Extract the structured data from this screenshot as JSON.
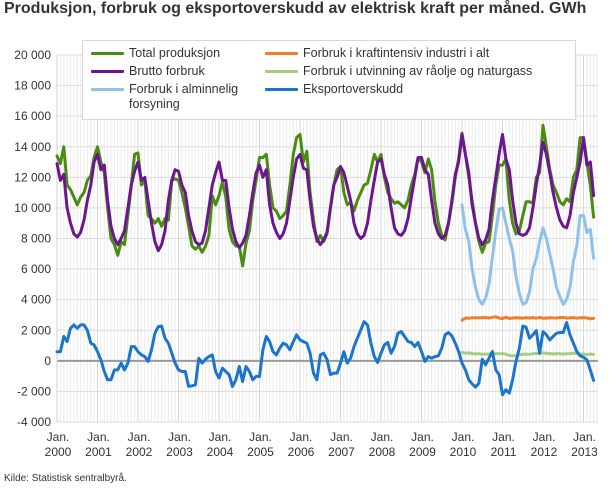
{
  "chart_data": {
    "type": "line",
    "title": "Produksjon, forbruk og eksportoverskudd av elektrisk kraft per måned. GWh",
    "xlabel": "",
    "ylabel": "",
    "ylim": [
      -4000,
      20000
    ],
    "yticks": [
      -4000,
      -2000,
      0,
      2000,
      4000,
      6000,
      8000,
      10000,
      12000,
      14000,
      16000,
      18000,
      20000
    ],
    "ytick_labels": [
      "-4 000",
      "-2 000",
      "0",
      "2 000",
      "4 000",
      "6 000",
      "8 000",
      "10 000",
      "12 000",
      "14 000",
      "16 000",
      "18 000",
      "20 000"
    ],
    "xtick_labels": [
      [
        "Jan.",
        "2000"
      ],
      [
        "Jan.",
        "2001"
      ],
      [
        "Jan.",
        "2002"
      ],
      [
        "Jan.",
        "2003"
      ],
      [
        "Jan.",
        "2004"
      ],
      [
        "Jan.",
        "2005"
      ],
      [
        "Jan.",
        "2006"
      ],
      [
        "Jan.",
        "2007"
      ],
      [
        "Jan.",
        "2008"
      ],
      [
        "Jan.",
        "2009"
      ],
      [
        "Jan.",
        "2010"
      ],
      [
        "Jan.",
        "2011"
      ],
      [
        "Jan.",
        "2012"
      ],
      [
        "Jan.",
        "2013"
      ]
    ],
    "x_frequency": "monthly",
    "x_first": "2000-01",
    "x_last": "2013-04",
    "grid": true,
    "legend": "top",
    "series": [
      {
        "name": "Total produksjon",
        "color": "#4a8c12",
        "start": "2000-01",
        "values": [
          13400,
          12900,
          14000,
          11500,
          11200,
          10700,
          10200,
          10700,
          11000,
          11800,
          12100,
          13300,
          14000,
          13000,
          12300,
          10000,
          8000,
          7600,
          6900,
          7800,
          7600,
          9500,
          11500,
          13500,
          13600,
          11500,
          11800,
          9500,
          9300,
          9000,
          9300,
          8800,
          9300,
          9200,
          11800,
          11900,
          11800,
          11000,
          10000,
          8800,
          7500,
          7300,
          7500,
          7100,
          7500,
          8200,
          10800,
          10200,
          10800,
          11700,
          10700,
          8600,
          7800,
          7500,
          7500,
          6200,
          7700,
          8500,
          10500,
          11800,
          13300,
          13300,
          13500,
          11500,
          10000,
          9800,
          9300,
          9500,
          9800,
          11500,
          13500,
          14600,
          14800,
          13000,
          13700,
          11000,
          9200,
          7800,
          8200,
          7800,
          8300,
          10000,
          11500,
          12500,
          12700,
          11000,
          10200,
          10400,
          9800,
          10500,
          11000,
          11500,
          11600,
          12500,
          13500,
          13000,
          13500,
          12000,
          11000,
          10600,
          10300,
          10400,
          10200,
          10000,
          10500,
          11500,
          12200,
          13300,
          13000,
          12300,
          13200,
          12500,
          10400,
          9000,
          8200,
          7900,
          9000,
          10300,
          12000,
          13200,
          14900,
          13500,
          12000,
          10500,
          9000,
          7800,
          7100,
          7700,
          7800,
          9500,
          11500,
          12800,
          12800,
          13200,
          10500,
          9000,
          8300,
          8500,
          9500,
          10400,
          10400,
          10300,
          12000,
          12300,
          15400,
          14000,
          12500,
          11500,
          11000,
          10400,
          10200,
          10600,
          10400,
          12000,
          12500,
          14600,
          14600,
          13000,
          11500,
          9400
        ]
      },
      {
        "name": "Brutto forbruk",
        "color": "#6b168f",
        "start": "2000-01",
        "values": [
          12900,
          11800,
          12200,
          10000,
          9000,
          8300,
          8100,
          8400,
          9200,
          10500,
          11500,
          13000,
          13500,
          12500,
          12800,
          10500,
          8800,
          8000,
          7600,
          8000,
          8500,
          10000,
          11500,
          12400,
          13000,
          11800,
          12000,
          10500,
          9000,
          7800,
          7200,
          7600,
          8500,
          10500,
          11800,
          12500,
          12400,
          11500,
          11000,
          9500,
          8500,
          7800,
          7600,
          7700,
          8500,
          10000,
          11500,
          12300,
          13000,
          11800,
          11800,
          10000,
          8600,
          7800,
          7400,
          7700,
          8200,
          9500,
          11000,
          12300,
          12800,
          12000,
          12500,
          10200,
          9000,
          8400,
          8000,
          8300,
          9000,
          10500,
          12000,
          13200,
          13500,
          12600,
          12500,
          10500,
          8800,
          8000,
          7600,
          7900,
          8400,
          10000,
          11500,
          12000,
          12700,
          12300,
          11400,
          10500,
          9000,
          8300,
          8000,
          8200,
          9000,
          10500,
          11800,
          13000,
          13200,
          12200,
          11500,
          10000,
          8700,
          8300,
          8200,
          8500,
          9300,
          10700,
          12000,
          13300,
          13300,
          12500,
          12200,
          10500,
          9000,
          8300,
          8000,
          8200,
          9000,
          10500,
          12200,
          13000,
          14800,
          13500,
          12300,
          10200,
          9000,
          8000,
          7600,
          7900,
          8600,
          10500,
          12000,
          13500,
          14800,
          13200,
          12500,
          10500,
          9000,
          8300,
          8200,
          8300,
          8700,
          10000,
          11500,
          12800,
          14300,
          13500,
          12300,
          11000,
          10000,
          9200,
          8800,
          8700,
          9500,
          11000,
          12000,
          13000,
          14600,
          12800,
          13000,
          10800
        ]
      },
      {
        "name": "Forbruk i alminnelig forsyning",
        "color": "#8fc1ea",
        "start": "2010-01",
        "values": [
          10200,
          8600,
          7800,
          6000,
          4800,
          4000,
          3700,
          4100,
          5000,
          6800,
          8500,
          9900,
          10000,
          9000,
          8000,
          7200,
          5500,
          4400,
          3700,
          3800,
          4500,
          6000,
          6700,
          7800,
          8700,
          8000,
          7000,
          6000,
          4800,
          4200,
          3700,
          4000,
          4800,
          6500,
          7500,
          9500,
          9500,
          8400,
          8600,
          6700
        ]
      },
      {
        "name": "Forbruk i kraftintensiv industri i alt",
        "color": "#f07e2c",
        "start": "2010-01",
        "values": [
          2650,
          2800,
          2780,
          2820,
          2820,
          2810,
          2830,
          2830,
          2800,
          2850,
          2880,
          2800,
          2760,
          2860,
          2770,
          2800,
          2820,
          2810,
          2790,
          2830,
          2800,
          2830,
          2790,
          2840,
          2780,
          2800,
          2820,
          2810,
          2800,
          2830,
          2840,
          2800,
          2810,
          2830,
          2790,
          2820,
          2830,
          2810,
          2740,
          2780
        ]
      },
      {
        "name": "Forbruk i utvinning av råolje og naturgass",
        "color": "#a4cf82",
        "start": "2010-01",
        "values": [
          550,
          500,
          520,
          470,
          450,
          470,
          430,
          440,
          450,
          480,
          460,
          470,
          470,
          440,
          350,
          330,
          340,
          400,
          420,
          440,
          430,
          460,
          480,
          480,
          520,
          500,
          470,
          450,
          470,
          460,
          440,
          460,
          470,
          500,
          480,
          430,
          460,
          400,
          450,
          420
        ]
      },
      {
        "name": "Eksportoverskudd",
        "color": "#1b75cc",
        "start": "2000-01",
        "values": [
          600,
          600,
          1600,
          1260,
          2130,
          2350,
          2130,
          2350,
          2350,
          2000,
          1150,
          1040,
          600,
          70,
          -700,
          -1240,
          -1240,
          -590,
          -590,
          -150,
          -590,
          -150,
          930,
          930,
          600,
          390,
          280,
          -40,
          720,
          1800,
          2240,
          2280,
          1480,
          1150,
          500,
          -150,
          -590,
          -700,
          -700,
          -1670,
          -1630,
          -1570,
          170,
          -150,
          110,
          280,
          390,
          -700,
          -1130,
          -480,
          -700,
          -910,
          -1670,
          -1240,
          -370,
          -1350,
          -370,
          -700,
          -1240,
          -1020,
          -1020,
          720,
          1590,
          1260,
          600,
          390,
          830,
          1150,
          1040,
          720,
          1260,
          1700,
          1370,
          1260,
          1150,
          500,
          -800,
          -1240,
          390,
          500,
          100,
          -900,
          -800,
          -800,
          -150,
          600,
          -150,
          170,
          930,
          1480,
          2020,
          2560,
          2350,
          1150,
          280,
          -110,
          500,
          1040,
          1200,
          500,
          930,
          1800,
          1910,
          1590,
          1260,
          1200,
          930,
          1200,
          610,
          -40,
          280,
          170,
          280,
          330,
          830,
          1700,
          1850,
          1630,
          1150,
          610,
          -150,
          -590,
          -1240,
          -1500,
          -1720,
          -1460,
          110,
          -260,
          170,
          610,
          -590,
          -910,
          -2220,
          -1890,
          -2110,
          -1240,
          -40,
          830,
          2280,
          2200,
          1480,
          1700,
          1980,
          500,
          1910,
          1700,
          1370,
          1590,
          1800,
          1850,
          1850,
          2500,
          1700,
          1150,
          610,
          330,
          240,
          70,
          -590,
          -1280
        ]
      }
    ]
  },
  "legend": {
    "items": [
      {
        "label": "Total produksjon",
        "color": "#4a8c12"
      },
      {
        "label": "Brutto forbruk",
        "color": "#6b168f"
      },
      {
        "label": "Forbruk i alminnelig forsyning",
        "color": "#8fc1ea"
      },
      {
        "label": "Forbruk i kraftintensiv industri i alt",
        "color": "#f07e2c"
      },
      {
        "label": "Forbruk i utvinning av råolje og naturgass",
        "color": "#a4cf82"
      },
      {
        "label": "Eksportoverskudd",
        "color": "#1b75cc"
      }
    ]
  },
  "source": "Kilde: Statistisk sentralbyrå."
}
